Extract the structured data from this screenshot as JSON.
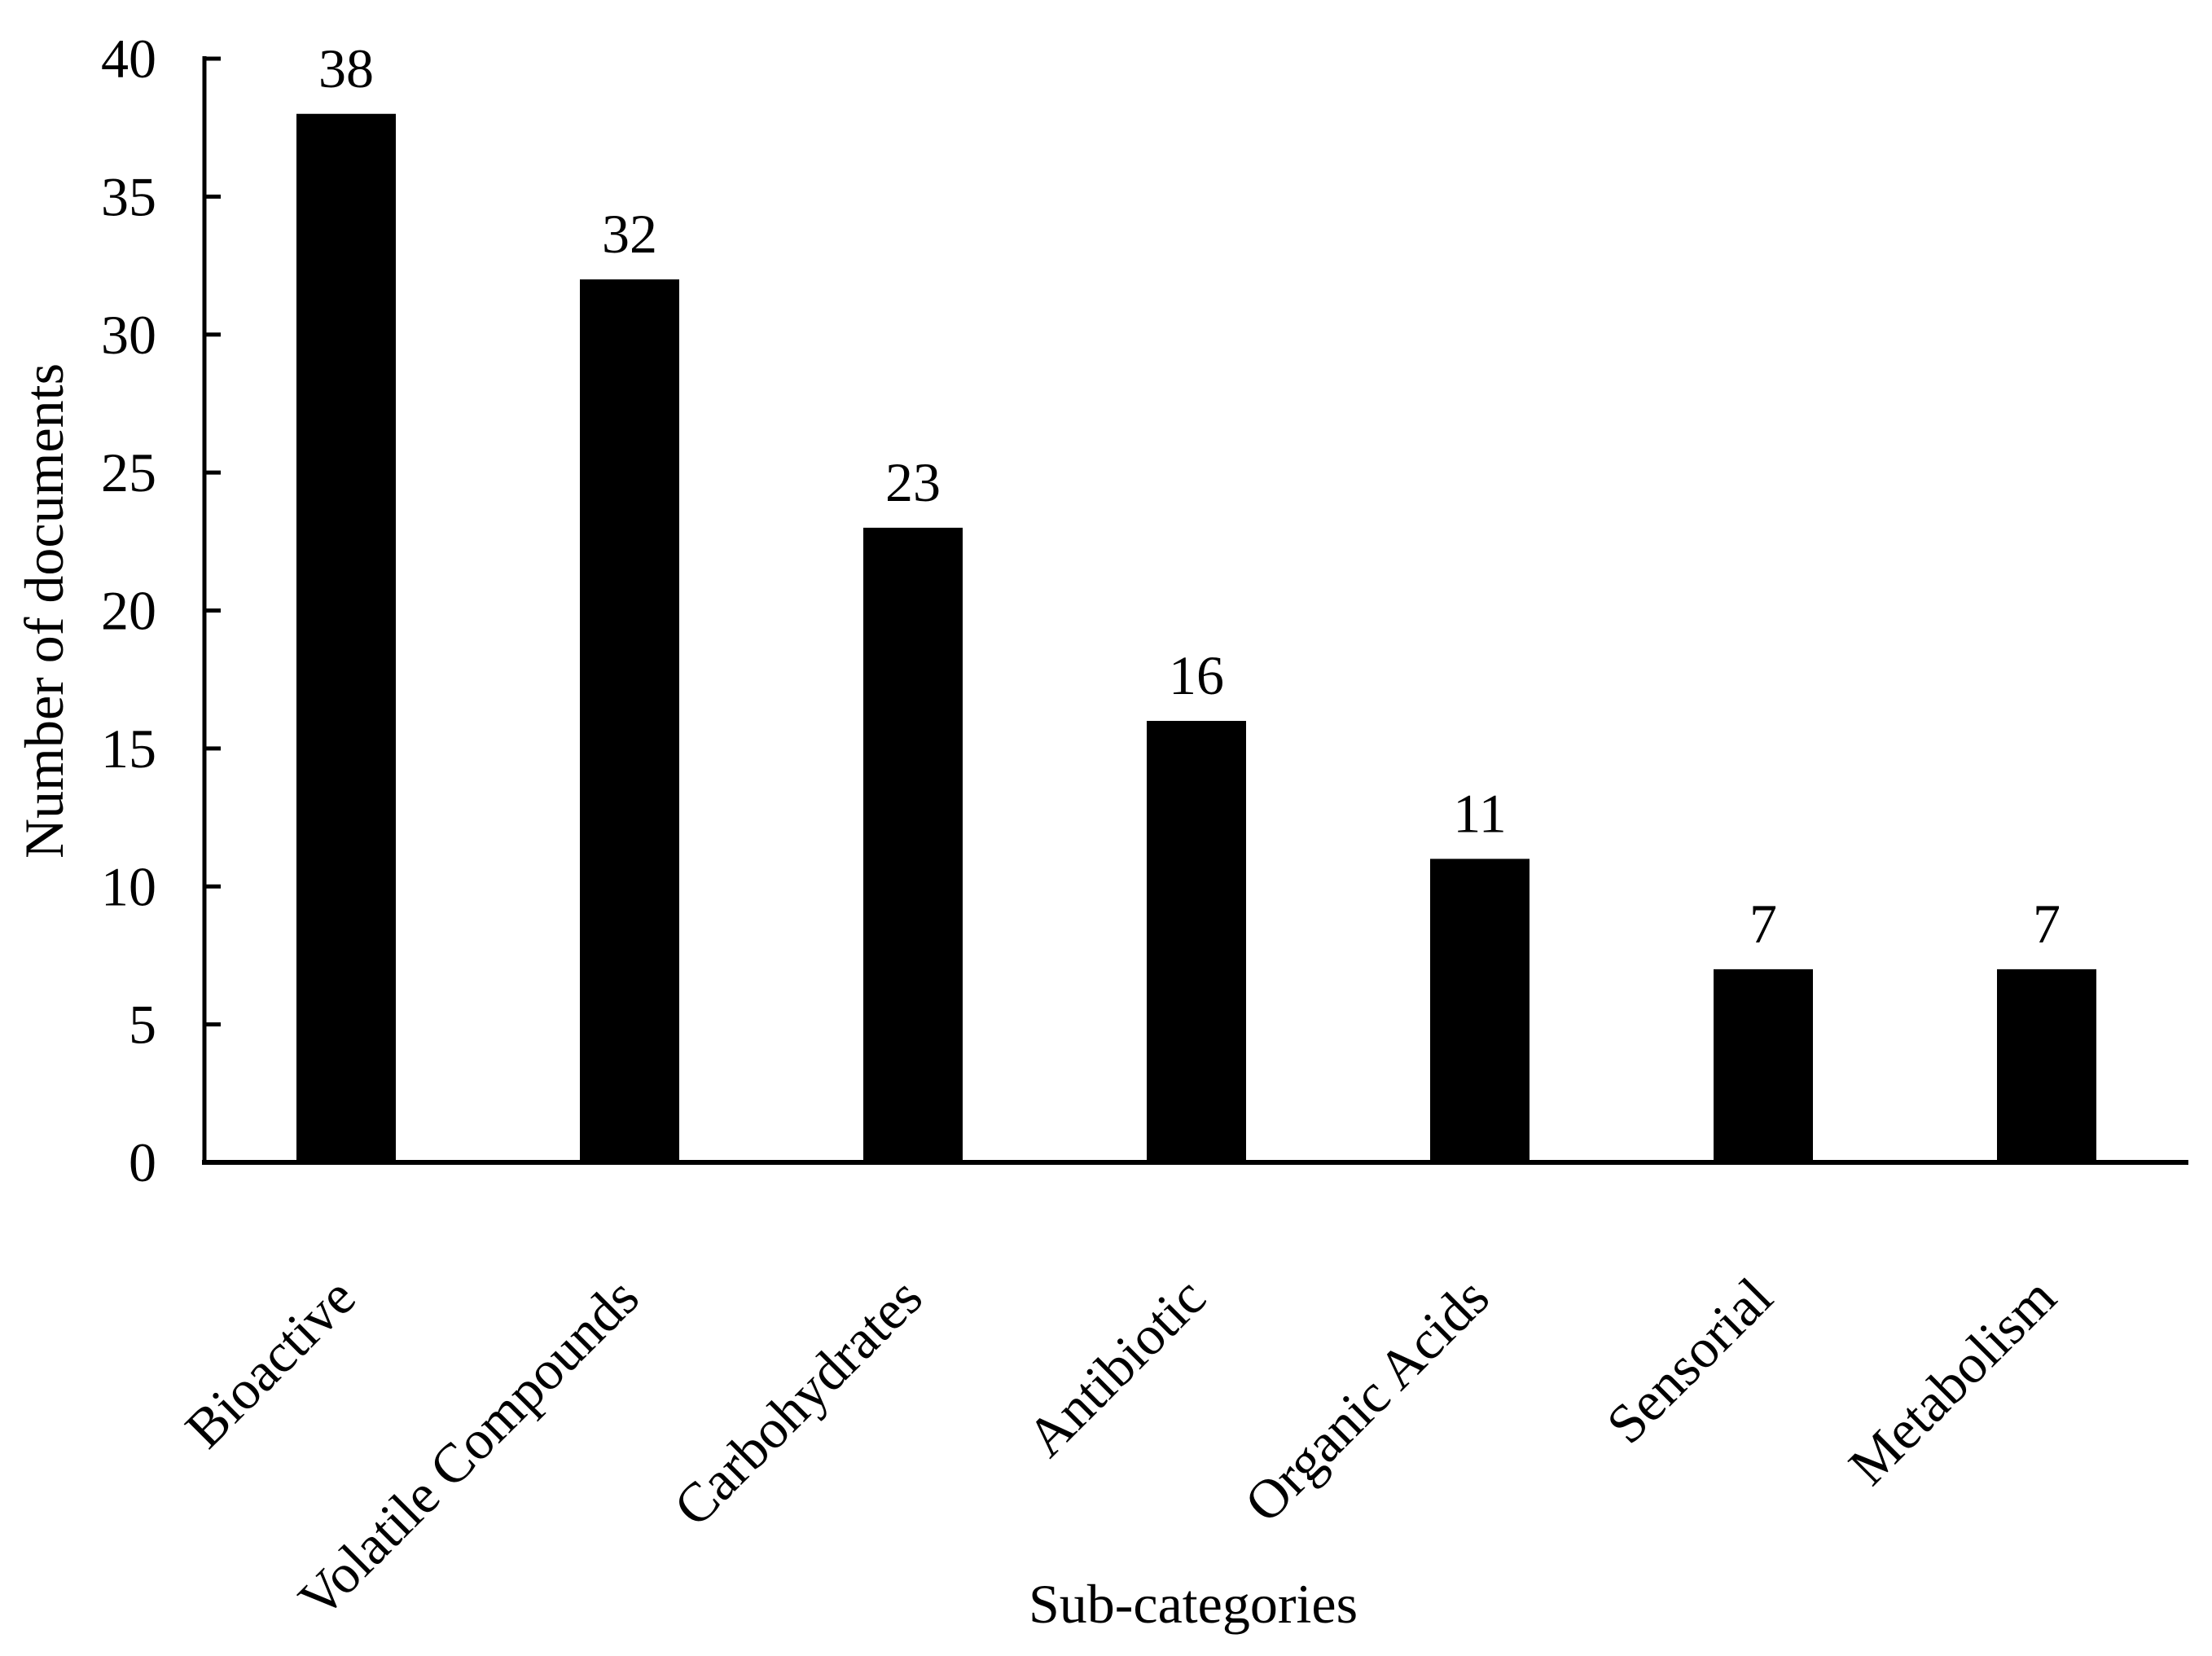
{
  "chart_data": {
    "type": "bar",
    "title": "",
    "categories": [
      "Bioactive",
      "Volatile Compounds",
      "Carbohydrates",
      "Antibiotic",
      "Organic Acids",
      "Sensorial",
      "Metabolism"
    ],
    "values": [
      38,
      32,
      23,
      16,
      11,
      7,
      7
    ],
    "value_labels": [
      "38",
      "32",
      "23",
      "16",
      "11",
      "7",
      "7"
    ],
    "xlabel": "Sub-categories",
    "ylabel": "Number of documents",
    "ylim": [
      0,
      40
    ],
    "yticks": [
      0,
      5,
      10,
      15,
      20,
      25,
      30,
      35,
      40
    ],
    "ytick_labels": [
      "0",
      "5",
      "10",
      "15",
      "20",
      "25",
      "30",
      "35",
      "40"
    ],
    "x_tick_rotation_deg": 45,
    "bar_color": "#000000",
    "axis_color": "#000000",
    "text_color": "#000000",
    "background_color": "#ffffff",
    "grid": "off",
    "legend": "none"
  }
}
